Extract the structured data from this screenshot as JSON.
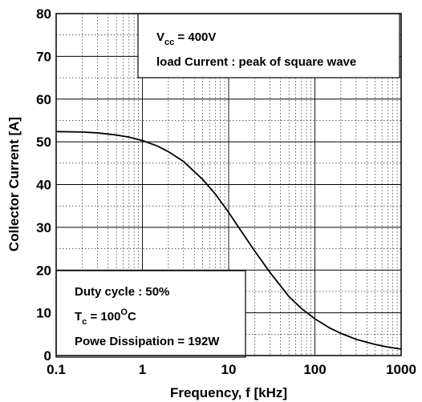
{
  "chart_data": {
    "type": "line",
    "xlabel": "Frequency, f [kHz]",
    "ylabel": "Collector Current [A]",
    "xscale": "log",
    "xlim": [
      0.1,
      1000
    ],
    "ylim": [
      0,
      80
    ],
    "grid": true,
    "x_ticks": [
      0.1,
      1,
      10,
      100,
      1000
    ],
    "x_tick_labels": [
      "0.1",
      "1",
      "10",
      "100",
      "1000"
    ],
    "y_ticks": [
      0,
      10,
      20,
      30,
      40,
      50,
      60,
      70,
      80
    ],
    "y_tick_labels": [
      "0",
      "10",
      "20",
      "30",
      "40",
      "50",
      "60",
      "70",
      "80"
    ],
    "series": [
      {
        "x": [
          0.1,
          0.2,
          0.3,
          0.5,
          0.7,
          1,
          1.5,
          2,
          3,
          5,
          7,
          10,
          15,
          20,
          30,
          50,
          70,
          100,
          150,
          200,
          300,
          500,
          700,
          1000
        ],
        "y": [
          52.4,
          52.3,
          52.1,
          51.6,
          51.1,
          50.3,
          49.0,
          47.7,
          45.4,
          41.2,
          37.8,
          33.5,
          28.2,
          24.5,
          19.5,
          13.8,
          11.0,
          8.6,
          6.4,
          5.2,
          3.8,
          2.6,
          2.0,
          1.5
        ],
        "color": "#000000"
      }
    ],
    "annotations": {
      "top_box": {
        "vcc_label": "V",
        "vcc_sub": "cc",
        "vcc_value": " = 400V",
        "load_line": "load Current : peak of square wave"
      },
      "bottom_box": {
        "duty_line": "Duty cycle : 50%",
        "tc_label": "T",
        "tc_sub": "c",
        "tc_value": " = 100",
        "tc_sup": "O",
        "tc_unit": "C",
        "power_line": "Powe Dissipation = 192W"
      }
    }
  }
}
